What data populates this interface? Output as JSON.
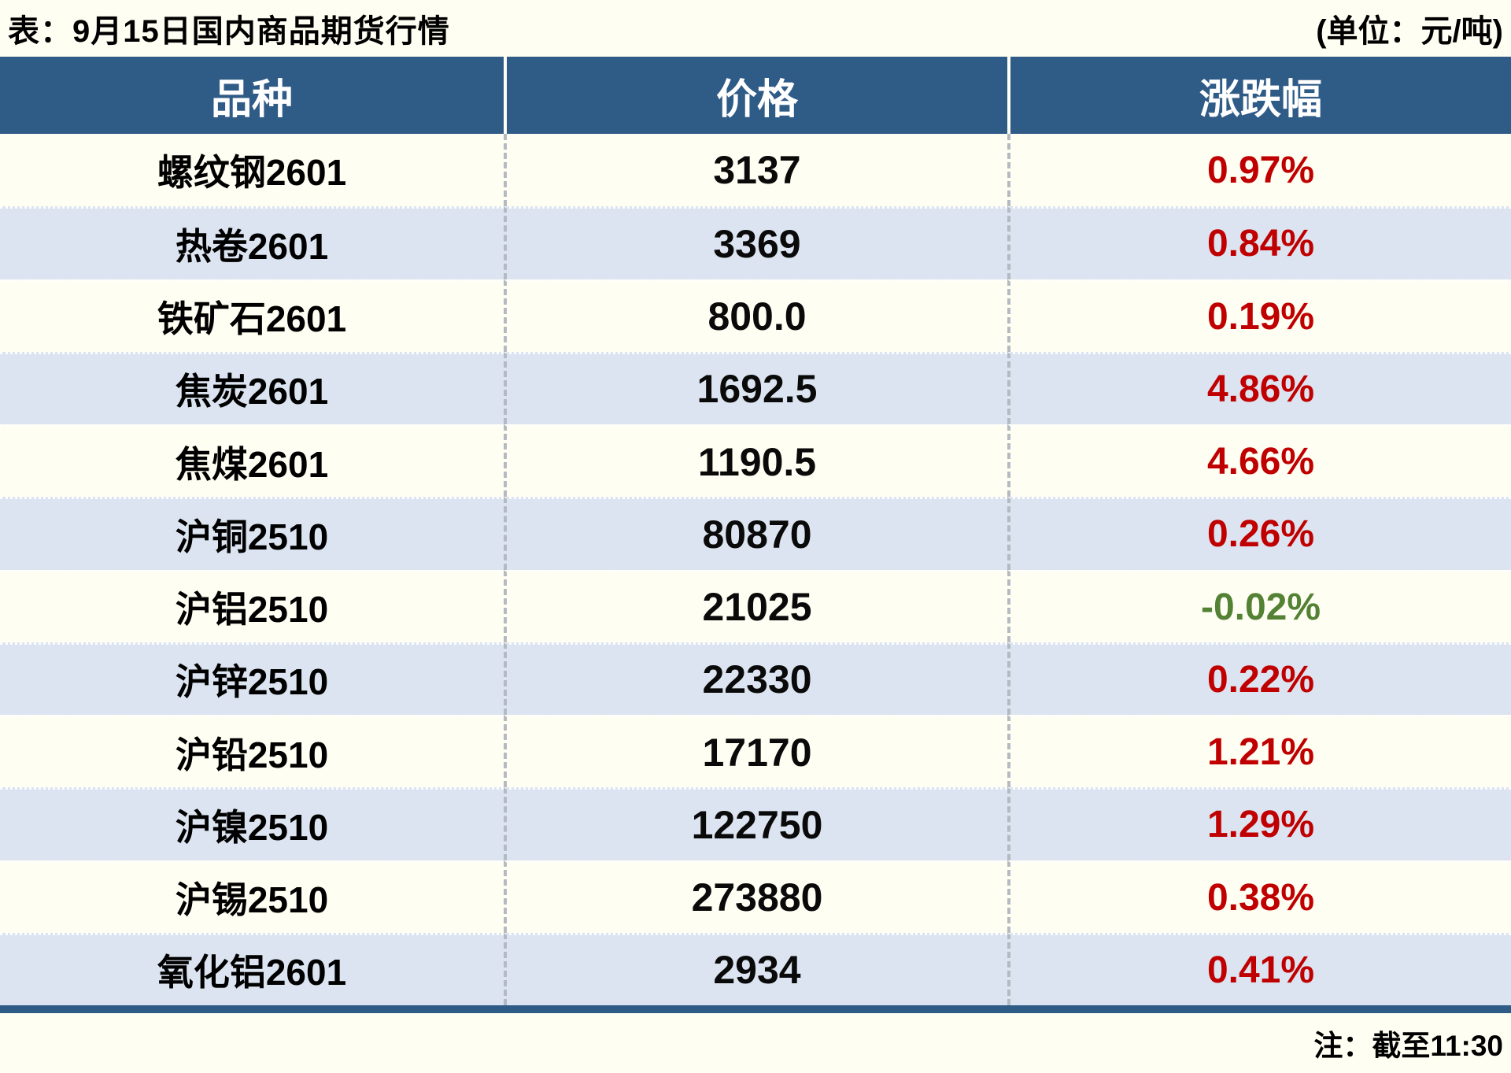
{
  "header": {
    "title": "表：9月15日国内商品期货行情",
    "unit": "(单位：元/吨)"
  },
  "footer": {
    "note": "注：截至11:30"
  },
  "colors": {
    "header_bg": "#2F5B87",
    "row_alt_bg": "#DBE4F0",
    "page_bg": "#FFFEF2",
    "up_red": "#C00000",
    "down_green": "#548235",
    "divider_gray": "#B4BAC2",
    "text_black": "#000000"
  },
  "chart_data": {
    "type": "table",
    "title": "表：9月15日国内商品期货行情",
    "unit": "(单位：元/吨)",
    "note": "注：截至11:30",
    "columns": [
      "品种",
      "价格",
      "涨跌幅"
    ],
    "rows": [
      {
        "variety": "螺纹钢2601",
        "price": "3137",
        "change": "0.97%",
        "direction": "up"
      },
      {
        "variety": "热卷2601",
        "price": "3369",
        "change": "0.84%",
        "direction": "up"
      },
      {
        "variety": "铁矿石2601",
        "price": "800.0",
        "change": "0.19%",
        "direction": "up"
      },
      {
        "variety": "焦炭2601",
        "price": "1692.5",
        "change": "4.86%",
        "direction": "up"
      },
      {
        "variety": "焦煤2601",
        "price": "1190.5",
        "change": "4.66%",
        "direction": "up"
      },
      {
        "variety": "沪铜2510",
        "price": "80870",
        "change": "0.26%",
        "direction": "up"
      },
      {
        "variety": "沪铝2510",
        "price": "21025",
        "change": "-0.02%",
        "direction": "down"
      },
      {
        "variety": "沪锌2510",
        "price": "22330",
        "change": "0.22%",
        "direction": "up"
      },
      {
        "variety": "沪铅2510",
        "price": "17170",
        "change": "1.21%",
        "direction": "up"
      },
      {
        "variety": "沪镍2510",
        "price": "122750",
        "change": "1.29%",
        "direction": "up"
      },
      {
        "variety": "沪锡2510",
        "price": "273880",
        "change": "0.38%",
        "direction": "up"
      },
      {
        "variety": "氧化铝2601",
        "price": "2934",
        "change": "0.41%",
        "direction": "up"
      }
    ]
  }
}
